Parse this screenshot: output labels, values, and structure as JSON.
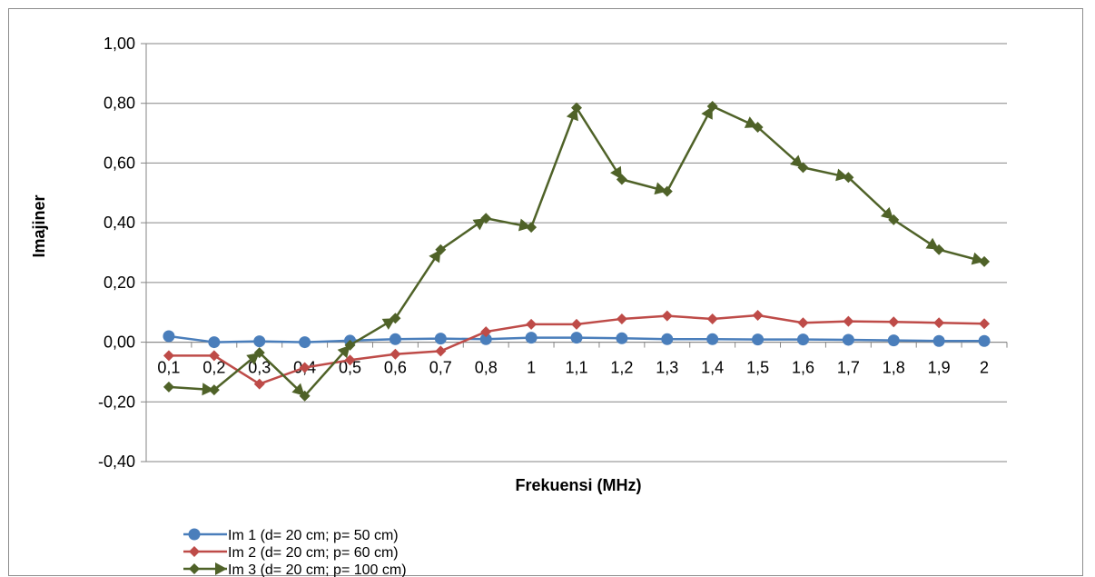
{
  "chart_data": {
    "type": "line",
    "title": "",
    "xlabel": "Frekuensi (MHz)",
    "ylabel": "Imajiner",
    "ylim": [
      -0.4,
      1.0
    ],
    "yticks": [
      "1,00",
      "0,80",
      "0,60",
      "0,40",
      "0,20",
      "0,00",
      "-0,20",
      "-0,40"
    ],
    "categories": [
      "0,1",
      "0,2",
      "0,3",
      "0,4",
      "0,5",
      "0,6",
      "0,7",
      "0,8",
      "1",
      "1,1",
      "1,2",
      "1,3",
      "1,4",
      "1,5",
      "1,6",
      "1,7",
      "1,8",
      "1,9",
      "2"
    ],
    "grid": true,
    "legend": "bottom-left",
    "series": [
      {
        "name": "Im 1 (d= 20 cm; p= 50 cm)",
        "color": "#4a7ebb",
        "marker": "circle",
        "values": [
          0.02,
          0.0,
          0.003,
          0.0,
          0.005,
          0.01,
          0.012,
          0.01,
          0.015,
          0.015,
          0.013,
          0.01,
          0.01,
          0.009,
          0.009,
          0.008,
          0.006,
          0.004,
          0.004
        ]
      },
      {
        "name": "Im 2 (d= 20 cm; p= 60 cm)",
        "color": "#be4b48",
        "marker": "diamond",
        "values": [
          -0.045,
          -0.045,
          -0.14,
          -0.085,
          -0.06,
          -0.04,
          -0.03,
          0.035,
          0.06,
          0.06,
          0.078,
          0.088,
          0.078,
          0.09,
          0.065,
          0.07,
          0.068,
          0.065,
          0.062
        ]
      },
      {
        "name": "Im 3 (d= 20 cm; p= 100 cm)",
        "color": "#4f6228",
        "marker": "arrow-diamond",
        "values": [
          -0.15,
          -0.16,
          -0.035,
          -0.18,
          -0.01,
          0.08,
          0.31,
          0.415,
          0.385,
          0.785,
          0.545,
          0.505,
          0.79,
          0.72,
          0.585,
          0.552,
          0.41,
          0.31,
          0.27
        ]
      }
    ]
  }
}
